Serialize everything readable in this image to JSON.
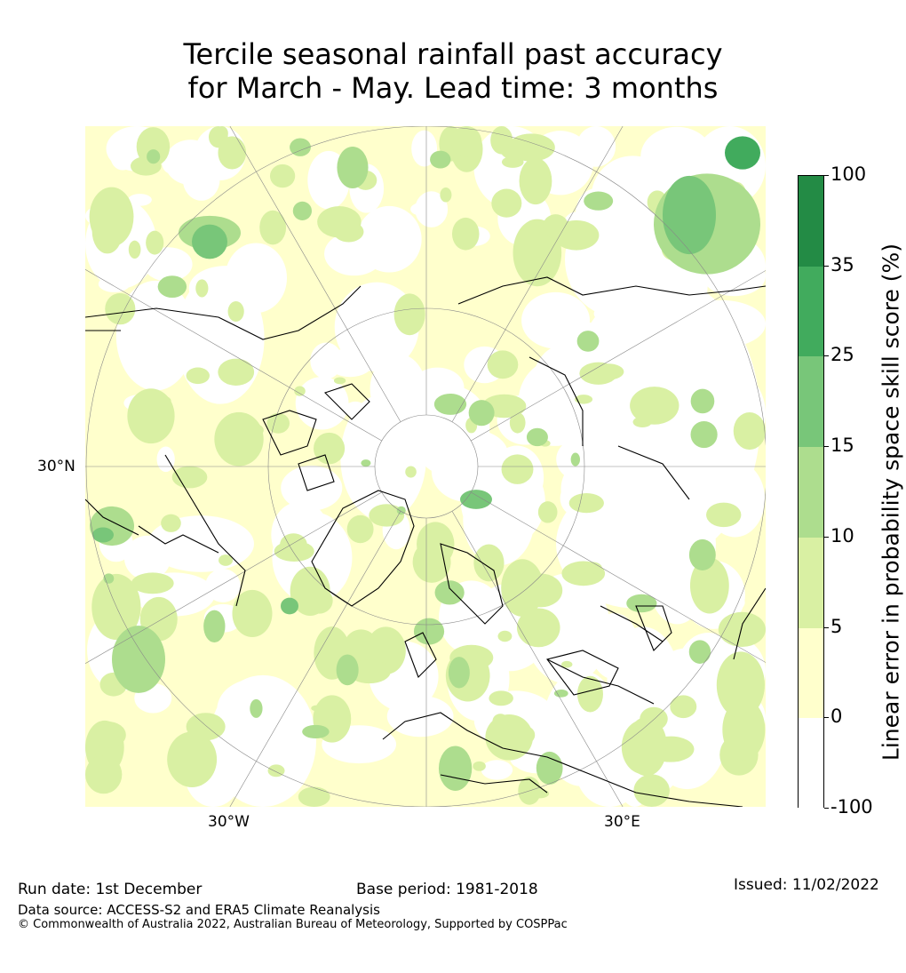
{
  "title_line1": "Tercile seasonal rainfall past accuracy",
  "title_line2": "for March - May. Lead time: 3 months",
  "map": {
    "labels": {
      "lat_30n": "30°N",
      "lon_30w": "30°W",
      "lon_30e": "30°E"
    },
    "projection": "north-polar-stereographic"
  },
  "colorbar": {
    "label": "Linear error in probability space skill score (%)",
    "ticks": [
      "100",
      "35",
      "25",
      "15",
      "10",
      "5",
      "0",
      "-100"
    ],
    "colors": [
      "#238b45",
      "#41ab5d",
      "#78c679",
      "#addd8e",
      "#d9f0a3",
      "#ffffcc",
      "#ffffff"
    ]
  },
  "footer": {
    "run_date": "Run date: 1st December",
    "base_period": "Base period: 1981-2018",
    "issued": "Issued: 11/02/2022",
    "data_source": "Data source: ACCESS-S2 and ERA5 Climate Reanalysis",
    "copyright": "© Commonwealth of Australia 2022, Australian Bureau of Meteorology, Supported by COSPPac"
  }
}
